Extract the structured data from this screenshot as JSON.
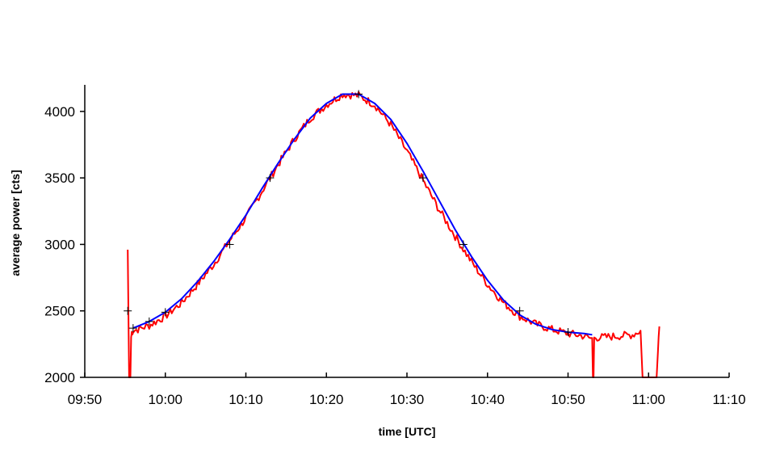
{
  "chart_data": {
    "type": "line",
    "title": "",
    "xlabel": "time [UTC]",
    "ylabel": "average power [cts]",
    "xlim": [
      "09:50",
      "11:10"
    ],
    "ylim": [
      2000,
      4200
    ],
    "x_ticks": [
      "09:50",
      "10:00",
      "10:10",
      "10:20",
      "10:30",
      "10:40",
      "10:50",
      "11:00",
      "11:10"
    ],
    "y_ticks": [
      2000,
      2500,
      3000,
      3500,
      4000
    ],
    "grid": false,
    "legend": "none",
    "colors": {
      "measured": "#ff0000",
      "fit": "#0000ff",
      "axis": "#000000"
    },
    "series": [
      {
        "style": "red-noisy",
        "x": [
          "09:55:20",
          "09:55:30",
          "09:55:40",
          "09:55:45",
          "09:55:50",
          "09:56:00",
          "09:58:00",
          "10:00:00",
          "10:02:00",
          "10:04:00",
          "10:06:00",
          "10:08:00",
          "10:10:00",
          "10:12:00",
          "10:14:00",
          "10:16:00",
          "10:18:00",
          "10:20:00",
          "10:22:00",
          "10:24:00",
          "10:26:00",
          "10:28:00",
          "10:30:00",
          "10:32:00",
          "10:34:00",
          "10:36:00",
          "10:38:00",
          "10:40:00",
          "10:42:00",
          "10:44:00",
          "10:46:00",
          "10:48:00",
          "10:50:00",
          "10:52:00",
          "10:53:00",
          "10:53:05",
          "10:53:10",
          "10:53:15",
          "10:54:00",
          "10:56:00",
          "10:58:00",
          "10:59:00",
          "10:59:15",
          "10:59:25",
          "11:01:00",
          "11:01:10",
          "11:01:20"
        ],
        "y": [
          2960,
          2000,
          2000,
          2300,
          2340,
          2350,
          2390,
          2460,
          2560,
          2700,
          2850,
          3030,
          3200,
          3400,
          3600,
          3790,
          3950,
          4050,
          4130,
          4120,
          4050,
          3900,
          3700,
          3480,
          3260,
          3060,
          2870,
          2700,
          2560,
          2460,
          2400,
          2360,
          2330,
          2310,
          2290,
          2000,
          2000,
          2300,
          2300,
          2310,
          2320,
          2350,
          2000,
          2000,
          2000,
          2200,
          2400
        ]
      },
      {
        "style": "blue-fit",
        "x": [
          "09:56:00",
          "09:58:00",
          "10:00:00",
          "10:02:00",
          "10:04:00",
          "10:06:00",
          "10:08:00",
          "10:10:00",
          "10:12:00",
          "10:14:00",
          "10:16:00",
          "10:18:00",
          "10:20:00",
          "10:22:00",
          "10:24:00",
          "10:26:00",
          "10:28:00",
          "10:30:00",
          "10:32:00",
          "10:34:00",
          "10:36:00",
          "10:38:00",
          "10:40:00",
          "10:42:00",
          "10:44:00",
          "10:46:00",
          "10:48:00",
          "10:50:00",
          "10:52:00",
          "10:53:00"
        ],
        "y": [
          2370,
          2420,
          2490,
          2590,
          2720,
          2870,
          3040,
          3220,
          3420,
          3610,
          3790,
          3950,
          4060,
          4130,
          4130,
          4060,
          3940,
          3760,
          3550,
          3330,
          3110,
          2910,
          2730,
          2580,
          2470,
          2400,
          2360,
          2340,
          2330,
          2320
        ]
      }
    ],
    "annotations": {
      "plus_markers": [
        {
          "x": "09:55:20",
          "y": 2500
        },
        {
          "x": "09:56:00",
          "y": 2370
        },
        {
          "x": "09:58:00",
          "y": 2420
        },
        {
          "x": "10:00:00",
          "y": 2490
        },
        {
          "x": "10:08:00",
          "y": 3000
        },
        {
          "x": "10:13:00",
          "y": 3500
        },
        {
          "x": "10:24:00",
          "y": 4130
        },
        {
          "x": "10:32:00",
          "y": 3500
        },
        {
          "x": "10:37:00",
          "y": 3000
        },
        {
          "x": "10:44:00",
          "y": 2500
        },
        {
          "x": "10:50:00",
          "y": 2340
        }
      ]
    }
  }
}
